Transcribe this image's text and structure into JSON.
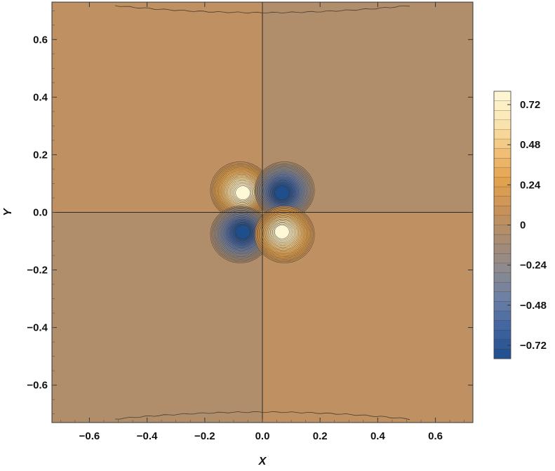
{
  "chart_data": {
    "type": "heatmap",
    "subtype": "contour",
    "title": "",
    "xlabel": "X",
    "ylabel": "Y",
    "xlim": [
      -0.73,
      0.73
    ],
    "ylim": [
      -0.73,
      0.73
    ],
    "x_ticks": [
      -0.6,
      -0.4,
      -0.2,
      0.0,
      0.2,
      0.4,
      0.6
    ],
    "y_ticks": [
      -0.6,
      -0.4,
      -0.2,
      0.0,
      0.2,
      0.4,
      0.6
    ],
    "x_tick_labels": [
      "−0.6",
      "−0.4",
      "−0.2",
      "0.0",
      "0.2",
      "0.4",
      "0.6"
    ],
    "y_tick_labels": [
      "−0.6",
      "−0.4",
      "−0.2",
      "0.0",
      "0.2",
      "0.4",
      "0.6"
    ],
    "colorbar": {
      "range": [
        -0.8,
        0.8
      ],
      "tick_values": [
        0.72,
        0.48,
        0.24,
        0,
        -0.24,
        -0.48,
        -0.72
      ],
      "tick_labels": [
        "0.72",
        "0.48",
        "0.24",
        "0",
        "−0.24",
        "−0.48",
        "−0.72"
      ],
      "palette": [
        "#1f4e8c",
        "#3f63a0",
        "#6b7fa6",
        "#8d8a8e",
        "#a88c72",
        "#c8925a",
        "#e3a24e",
        "#f1c178",
        "#fbe7b4",
        "#fff8d6"
      ]
    },
    "lobes": [
      {
        "x": -0.065,
        "y": 0.065,
        "peak": 0.8
      },
      {
        "x": 0.065,
        "y": 0.065,
        "peak": -0.8
      },
      {
        "x": -0.065,
        "y": -0.065,
        "peak": -0.8
      },
      {
        "x": 0.065,
        "y": -0.065,
        "peak": 0.8
      }
    ],
    "grid": false,
    "legend": "colorbar right"
  }
}
